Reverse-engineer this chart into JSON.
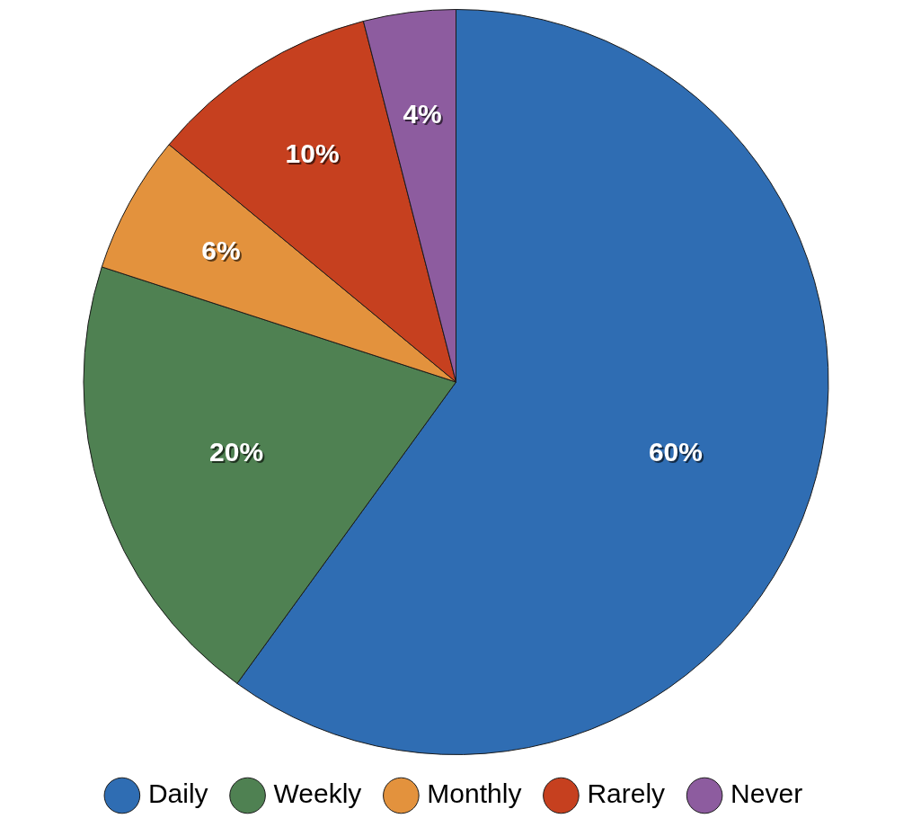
{
  "chart_data": {
    "type": "pie",
    "categories": [
      "Daily",
      "Weekly",
      "Monthly",
      "Rarely",
      "Never"
    ],
    "values": [
      60,
      20,
      6,
      10,
      4
    ],
    "colors": [
      "#2f6db3",
      "#4f8152",
      "#e3923d",
      "#c6401f",
      "#8d5c9f"
    ],
    "value_labels": [
      "60%",
      "20%",
      "6%",
      "10%",
      "4%"
    ],
    "legend": "bottom"
  }
}
